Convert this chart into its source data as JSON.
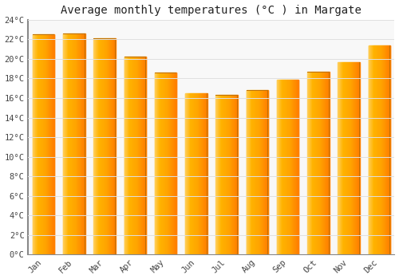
{
  "title": "Average monthly temperatures (°C ) in Margate",
  "months": [
    "Jan",
    "Feb",
    "Mar",
    "Apr",
    "May",
    "Jun",
    "Jul",
    "Aug",
    "Sep",
    "Oct",
    "Nov",
    "Dec"
  ],
  "values": [
    22.5,
    22.6,
    22.1,
    20.2,
    18.6,
    16.5,
    16.3,
    16.8,
    17.9,
    18.7,
    19.7,
    21.4
  ],
  "bar_color_main": "#FFA500",
  "bar_color_light": "#FFD060",
  "bar_color_dark": "#E08000",
  "background_color": "#ffffff",
  "plot_bg_color": "#f8f8f8",
  "grid_color": "#e0e0e0",
  "ytick_labels": [
    "0°C",
    "2°C",
    "4°C",
    "6°C",
    "8°C",
    "10°C",
    "12°C",
    "14°C",
    "16°C",
    "18°C",
    "20°C",
    "22°C",
    "24°C"
  ],
  "ytick_values": [
    0,
    2,
    4,
    6,
    8,
    10,
    12,
    14,
    16,
    18,
    20,
    22,
    24
  ],
  "ylim": [
    0,
    24
  ],
  "title_fontsize": 10,
  "tick_fontsize": 7.5,
  "font_family": "monospace"
}
